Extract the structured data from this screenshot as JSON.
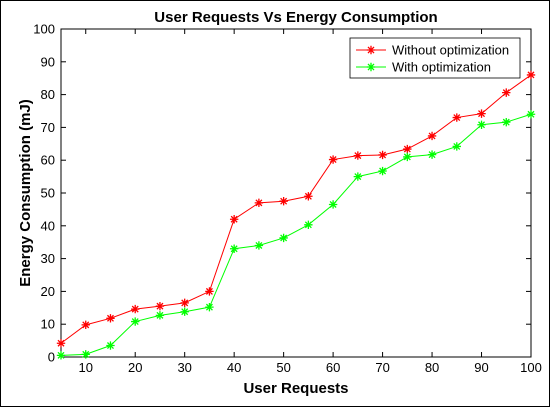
{
  "chart_data": {
    "type": "line",
    "title": "User Requests Vs Energy Consumption",
    "xlabel": "User Requests",
    "ylabel": "Energy Consumption (mJ)",
    "xlim": [
      5,
      100
    ],
    "ylim": [
      0,
      100
    ],
    "xticks": [
      10,
      20,
      30,
      40,
      50,
      60,
      70,
      80,
      90,
      100
    ],
    "yticks": [
      0,
      10,
      20,
      30,
      40,
      50,
      60,
      70,
      80,
      90,
      100
    ],
    "grid": false,
    "legend_position": "top-right",
    "x": [
      5,
      10,
      15,
      20,
      25,
      30,
      35,
      40,
      45,
      50,
      55,
      60,
      65,
      70,
      75,
      80,
      85,
      90,
      95,
      100
    ],
    "series": [
      {
        "name": "Without optimization",
        "color": "#ff0000",
        "marker": "asterisk",
        "values": [
          4.2,
          9.8,
          11.8,
          14.6,
          15.5,
          16.5,
          20,
          42,
          47,
          47.5,
          49,
          60.2,
          61.4,
          61.6,
          63.4,
          67.4,
          73,
          74.2,
          80.6,
          86
        ]
      },
      {
        "name": "With optimization",
        "color": "#00ff00",
        "marker": "asterisk",
        "values": [
          0.5,
          0.8,
          3.5,
          10.8,
          12.7,
          13.8,
          15.2,
          33,
          34,
          36.3,
          40.3,
          46.5,
          55,
          56.7,
          61,
          61.7,
          64.2,
          70.8,
          71.6,
          74
        ]
      }
    ]
  }
}
